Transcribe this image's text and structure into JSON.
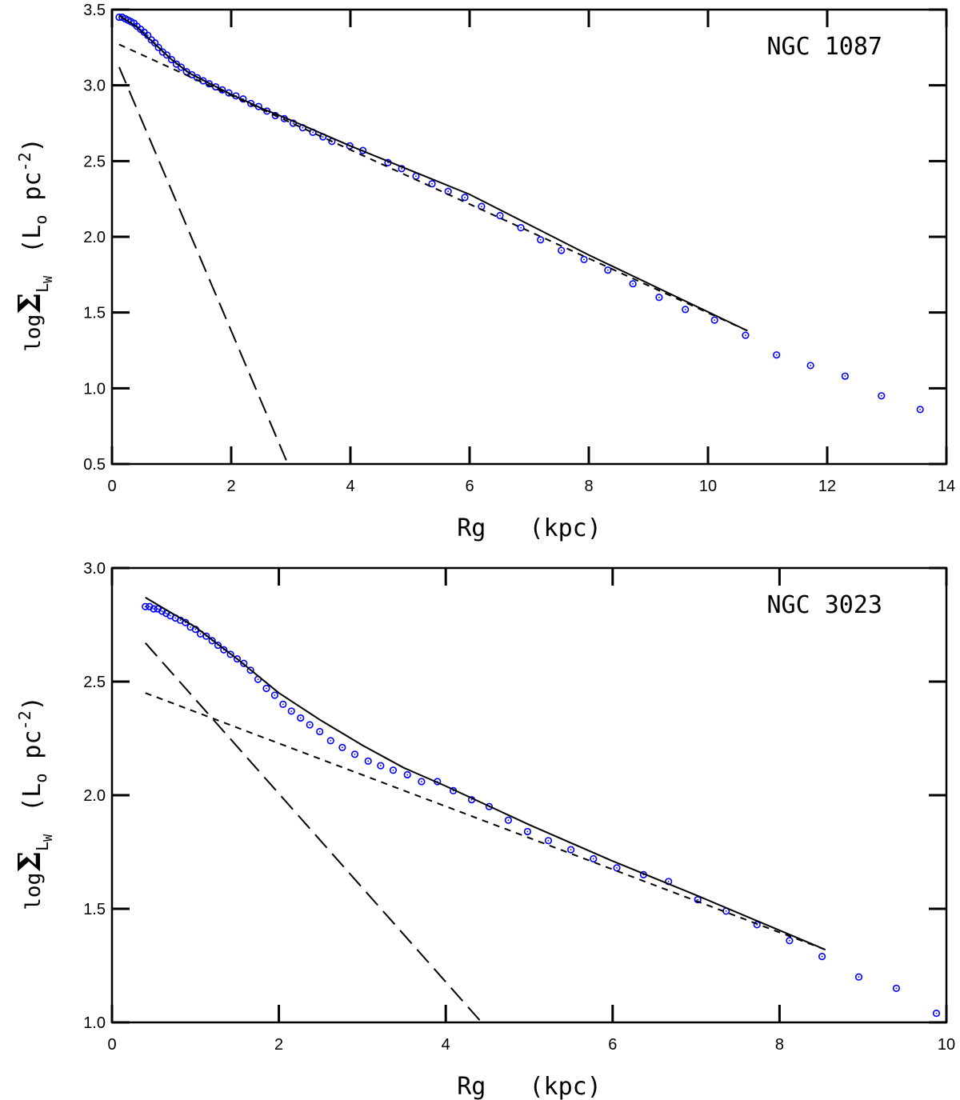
{
  "chart_data": [
    {
      "type": "scatter",
      "annotation": "NGC 1087",
      "xlabel": "Rg   (kpc)",
      "ylabel": {
        "log": "log",
        "symbol": "Σ",
        "sub": "L",
        "subsub": "W",
        "open": "(L",
        "unit_sub": "o",
        "mid": " pc",
        "sup": "-2",
        "close": ")"
      },
      "xlim": [
        0,
        14
      ],
      "ylim": [
        0.5,
        3.5
      ],
      "xticks": [
        0,
        2,
        4,
        6,
        8,
        10,
        12,
        14
      ],
      "yticks": [
        0.5,
        {
          "value": 1,
          "label": "1.0"
        },
        1.5,
        {
          "value": 2,
          "label": "2.0"
        },
        2.5,
        {
          "value": 3,
          "label": "3.0"
        },
        3.5
      ],
      "series": [
        {
          "marker": "circle",
          "color": "#0000ff",
          "x": [
            0.12,
            0.17,
            0.22,
            0.27,
            0.32,
            0.37,
            0.42,
            0.48,
            0.54,
            0.6,
            0.66,
            0.72,
            0.78,
            0.85,
            0.92,
            1.0,
            1.08,
            1.16,
            1.25,
            1.34,
            1.43,
            1.53,
            1.63,
            1.74,
            1.85,
            1.96,
            2.08,
            2.2,
            2.33,
            2.46,
            2.6,
            2.74,
            2.89,
            3.04,
            3.2,
            3.37,
            3.54,
            3.69,
            3.99,
            4.21,
            4.63,
            4.86,
            5.1,
            5.37,
            5.64,
            5.92,
            6.2,
            6.51,
            6.86,
            7.19,
            7.54,
            7.92,
            8.32,
            8.74,
            9.18,
            9.62,
            10.11,
            10.63,
            11.15,
            11.72,
            12.3,
            12.91,
            13.56
          ],
          "values": [
            3.45,
            3.45,
            3.44,
            3.43,
            3.42,
            3.41,
            3.39,
            3.37,
            3.35,
            3.33,
            3.3,
            3.28,
            3.25,
            3.22,
            3.2,
            3.17,
            3.14,
            3.12,
            3.09,
            3.07,
            3.05,
            3.03,
            3.01,
            2.99,
            2.97,
            2.95,
            2.93,
            2.91,
            2.88,
            2.86,
            2.83,
            2.8,
            2.78,
            2.75,
            2.72,
            2.69,
            2.66,
            2.63,
            2.6,
            2.57,
            2.49,
            2.45,
            2.4,
            2.35,
            2.3,
            2.26,
            2.2,
            2.14,
            2.06,
            1.98,
            1.91,
            1.85,
            1.78,
            1.69,
            1.6,
            1.52,
            1.45,
            1.35,
            1.22,
            1.15,
            1.08,
            0.95,
            0.86
          ]
        },
        {
          "dash": "solid",
          "color": "#000000",
          "x": [
            0.12,
            0.4,
            0.7,
            1.0,
            1.3,
            1.6,
            2.0,
            2.5,
            3.0,
            4.0,
            6.0,
            8.0,
            10.66
          ],
          "values": [
            3.46,
            3.39,
            3.28,
            3.17,
            3.08,
            3.02,
            2.94,
            2.85,
            2.77,
            2.6,
            2.28,
            1.88,
            1.38
          ]
        },
        {
          "dash": "long",
          "color": "#000000",
          "x": [
            0.12,
            2.95
          ],
          "values": [
            3.12,
            0.5
          ]
        },
        {
          "dash": "short",
          "color": "#000000",
          "x": [
            0.12,
            10.66
          ],
          "values": [
            3.27,
            1.38
          ]
        }
      ]
    },
    {
      "type": "scatter",
      "annotation": "NGC 3023",
      "xlabel": "Rg   (kpc)",
      "ylabel": {
        "log": "log",
        "symbol": "Σ",
        "sub": "L",
        "subsub": "W",
        "open": "(L",
        "unit_sub": "o",
        "mid": " pc",
        "sup": "-2",
        "close": ")"
      },
      "xlim": [
        0,
        10
      ],
      "ylim": [
        1,
        3
      ],
      "xticks": [
        0,
        2,
        4,
        6,
        8,
        10
      ],
      "yticks": [
        {
          "value": 1,
          "label": "1.0"
        },
        1.5,
        {
          "value": 2,
          "label": "2.0"
        },
        2.5,
        {
          "value": 3,
          "label": "3.0"
        }
      ],
      "series": [
        {
          "marker": "circle",
          "color": "#0000ff",
          "x": [
            0.4,
            0.45,
            0.5,
            0.55,
            0.6,
            0.65,
            0.7,
            0.76,
            0.82,
            0.88,
            0.94,
            1.0,
            1.06,
            1.13,
            1.2,
            1.27,
            1.34,
            1.42,
            1.5,
            1.58,
            1.66,
            1.75,
            1.85,
            1.95,
            2.05,
            2.15,
            2.26,
            2.37,
            2.49,
            2.62,
            2.76,
            2.91,
            3.07,
            3.22,
            3.37,
            3.54,
            3.71,
            3.9,
            4.09,
            4.31,
            4.52,
            4.75,
            4.98,
            5.23,
            5.5,
            5.77,
            6.05,
            6.37,
            6.67,
            7.02,
            7.36,
            7.73,
            8.12,
            8.51,
            8.95,
            9.4,
            9.88
          ],
          "values": [
            2.83,
            2.83,
            2.82,
            2.82,
            2.81,
            2.8,
            2.79,
            2.78,
            2.77,
            2.76,
            2.74,
            2.73,
            2.71,
            2.7,
            2.68,
            2.66,
            2.64,
            2.62,
            2.6,
            2.58,
            2.55,
            2.51,
            2.47,
            2.44,
            2.4,
            2.37,
            2.34,
            2.31,
            2.28,
            2.24,
            2.21,
            2.18,
            2.15,
            2.13,
            2.11,
            2.09,
            2.06,
            2.06,
            2.02,
            1.98,
            1.95,
            1.89,
            1.84,
            1.8,
            1.76,
            1.72,
            1.68,
            1.65,
            1.62,
            1.54,
            1.49,
            1.43,
            1.36,
            1.29,
            1.2,
            1.15,
            1.04
          ]
        },
        {
          "dash": "solid",
          "color": "#000000",
          "x": [
            0.4,
            1.0,
            1.5,
            2.0,
            2.5,
            3.0,
            3.5,
            4.0,
            5.0,
            6.0,
            7.0,
            8.55
          ],
          "values": [
            2.87,
            2.74,
            2.6,
            2.45,
            2.33,
            2.22,
            2.12,
            2.04,
            1.87,
            1.71,
            1.56,
            1.32
          ]
        },
        {
          "dash": "long",
          "color": "#000000",
          "x": [
            0.4,
            4.43
          ],
          "values": [
            2.67,
            1.0
          ]
        },
        {
          "dash": "short",
          "color": "#000000",
          "x": [
            0.4,
            8.55
          ],
          "values": [
            2.45,
            1.32
          ]
        }
      ]
    }
  ]
}
